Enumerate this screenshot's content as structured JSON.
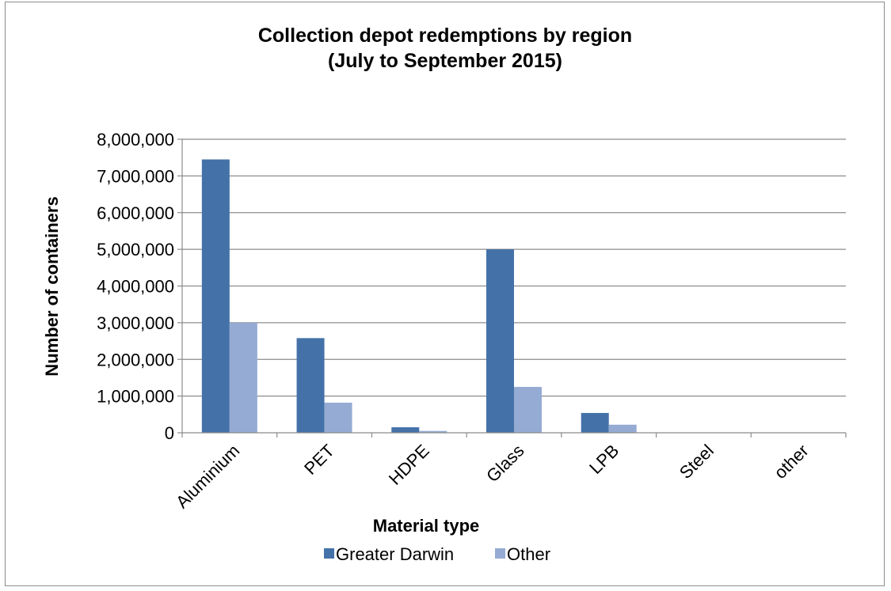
{
  "chart_data": {
    "type": "bar",
    "title_lines": [
      "Collection depot redemptions by region",
      "(July to September 2015)"
    ],
    "xlabel": "Material type",
    "ylabel": "Number of containers",
    "categories": [
      "Aluminium",
      "PET",
      "HDPE",
      "Glass",
      "LPB",
      "Steel",
      "other"
    ],
    "series": [
      {
        "name": "Greater Darwin",
        "color": "#4472a8",
        "values": [
          7450000,
          2580000,
          150000,
          5000000,
          540000,
          0,
          0
        ]
      },
      {
        "name": "Other",
        "color": "#95abd3",
        "values": [
          3000000,
          820000,
          50000,
          1250000,
          220000,
          0,
          0
        ]
      }
    ],
    "ylim": [
      0,
      8000000
    ],
    "yticks": [
      0,
      1000000,
      2000000,
      3000000,
      4000000,
      5000000,
      6000000,
      7000000,
      8000000
    ],
    "ytick_labels": [
      "0",
      "1,000,000",
      "2,000,000",
      "3,000,000",
      "4,000,000",
      "5,000,000",
      "6,000,000",
      "7,000,000",
      "8,000,000"
    ],
    "grid": true,
    "legend_position": "bottom"
  }
}
